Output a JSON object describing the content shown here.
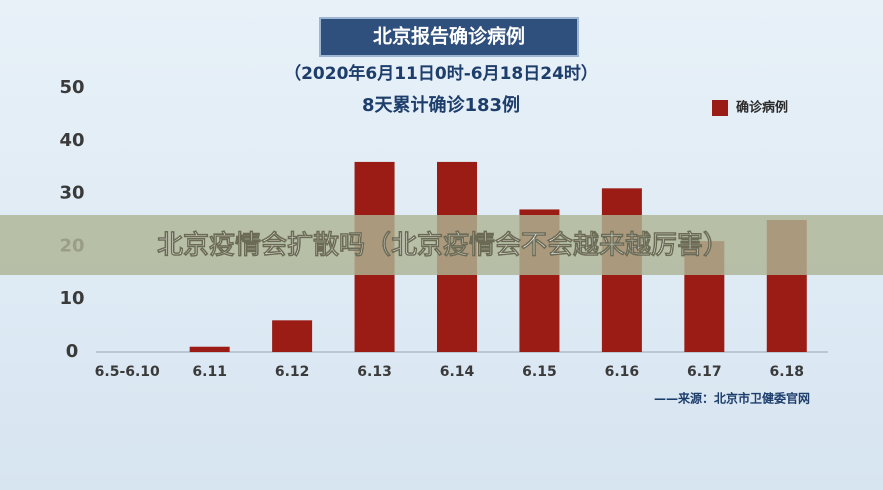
{
  "chart_data": {
    "type": "bar",
    "title": "北京报告确诊病例",
    "subtitle": "（2020年6月11日0时-6月18日24时）",
    "annotation": "8天累计确诊183例",
    "source": "——来源：北京市卫健委官网",
    "categories": [
      "6.5-6.10",
      "6.11",
      "6.12",
      "6.13",
      "6.14",
      "6.15",
      "6.16",
      "6.17",
      "6.18"
    ],
    "series": [
      {
        "name": "确诊病例",
        "color": "#9b1c14",
        "values": [
          0,
          1,
          6,
          36,
          36,
          27,
          31,
          21,
          25
        ]
      }
    ],
    "ylim": [
      0,
      50
    ],
    "yticks": [
      0,
      10,
      20,
      30,
      40,
      50
    ],
    "grid": false,
    "legend": "top-right"
  },
  "overlay_title": "北京疫情会扩散吗（北京疫情会不会越来越厉害）"
}
